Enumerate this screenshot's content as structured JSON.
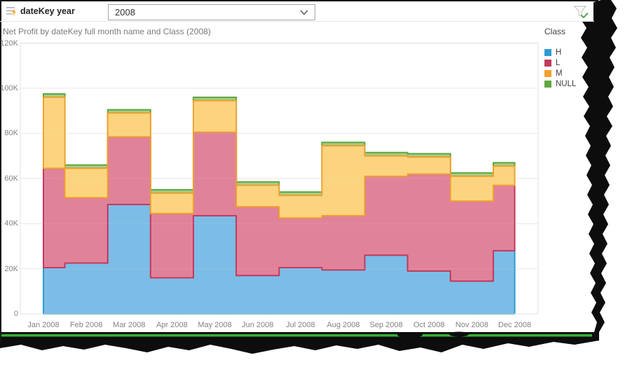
{
  "slicer": {
    "label": "dateKey year",
    "value": "2008",
    "icons": {
      "left": "slicer-lightning-icon",
      "dropdown": "chevron-down-icon",
      "header": "filter-applied-check-icon"
    }
  },
  "chart": {
    "title": "Net Profit by dateKey full month name and Class (2008)"
  },
  "legend": {
    "title": "Class",
    "position": "right",
    "items": [
      {
        "label": "H",
        "color": "#2E9BD5"
      },
      {
        "label": "L",
        "color": "#C33A5E"
      },
      {
        "label": "M",
        "color": "#F0A22F"
      },
      {
        "label": "NULL",
        "color": "#5FA73E"
      }
    ]
  },
  "chart_data": {
    "type": "area",
    "variant": "stacked-step",
    "title": "Net Profit by dateKey full month name and Class (2008)",
    "unit": "thousands (K)",
    "grid": true,
    "ylim_K": [
      0,
      120
    ],
    "y_ticks": [
      {
        "label": "120K",
        "value": 120
      },
      {
        "label": "100K",
        "value": 100
      },
      {
        "label": "80K",
        "value": 80
      },
      {
        "label": "60K",
        "value": 60
      },
      {
        "label": "40K",
        "value": 40
      },
      {
        "label": "20K",
        "value": 20
      },
      {
        "label": "0",
        "value": 0
      }
    ],
    "categories": [
      "Jan 2008",
      "Feb 2008",
      "Mar 2008",
      "Apr 2008",
      "May 2008",
      "Jun 2008",
      "Jul 2008",
      "Aug 2008",
      "Sep 2008",
      "Oct 2008",
      "Nov 2008",
      "Dec 2008"
    ],
    "series": [
      {
        "name": "H",
        "color": "#2E9BD5",
        "fill": "#7CBDE7",
        "values_K": [
          20.5,
          22.5,
          48.5,
          16,
          43.5,
          17,
          20.5,
          19.5,
          26,
          19,
          14.5,
          28
        ]
      },
      {
        "name": "L",
        "color": "#C33A5E",
        "fill": "#E0839A",
        "values_K": [
          44,
          29,
          30,
          28.5,
          37,
          30.5,
          22,
          24,
          35,
          43,
          35.5,
          29
        ]
      },
      {
        "name": "M",
        "color": "#F0A22F",
        "fill": "#FCD480",
        "values_K": [
          31.5,
          13,
          10.5,
          9,
          14,
          9.5,
          10,
          31,
          9,
          7.5,
          11,
          8.5
        ]
      },
      {
        "name": "NULL",
        "color": "#5FA73E",
        "fill": "#A4CC8B",
        "values_K": [
          1.5,
          1.5,
          1.5,
          1.5,
          1.5,
          1.5,
          1.5,
          1.5,
          1.5,
          1.5,
          1.5,
          1.5
        ]
      }
    ],
    "stack_totals_K": [
      97.5,
      66,
      90.5,
      55,
      96,
      58.5,
      54,
      76,
      71.5,
      71,
      62.5,
      67
    ]
  }
}
